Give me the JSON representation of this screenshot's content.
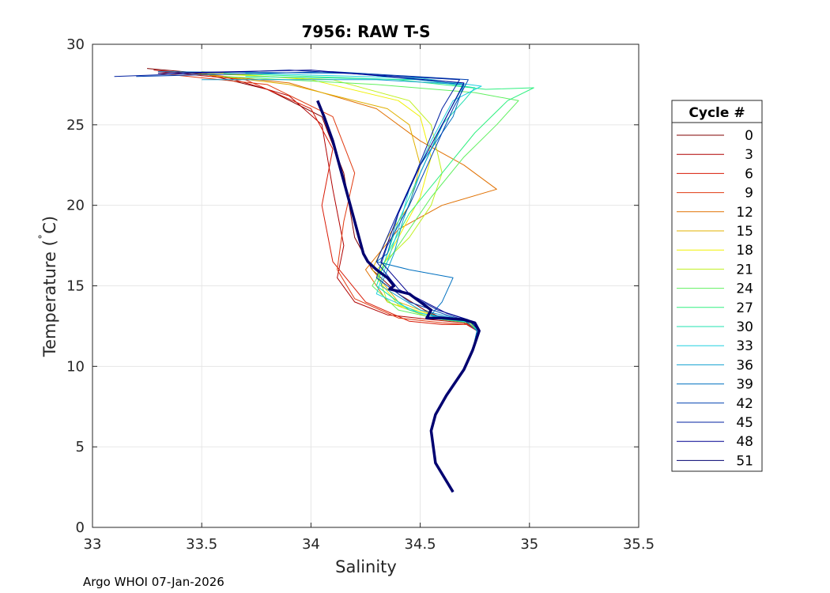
{
  "chart_data": {
    "type": "line",
    "title": "7956: RAW T-S",
    "xlabel": "Salinity",
    "ylabel": "Temperature (°C)",
    "ylabel_main": "Temperature (",
    "ylabel_unit": "°C)",
    "xlim": [
      33,
      35.5
    ],
    "ylim": [
      0,
      30
    ],
    "x_ticks": [
      33,
      33.5,
      34,
      34.5,
      35,
      35.5
    ],
    "x_tick_labels": [
      "33",
      "33.5",
      "34",
      "34.5",
      "35",
      "35.5"
    ],
    "y_ticks": [
      0,
      5,
      10,
      15,
      20,
      25,
      30
    ],
    "y_tick_labels": [
      "0",
      "5",
      "10",
      "15",
      "20",
      "25",
      "30"
    ],
    "grid": true,
    "legend": {
      "title": "Cycle #",
      "placement": "right-outside",
      "entries": [
        "0",
        "3",
        "6",
        "9",
        "12",
        "15",
        "18",
        "21",
        "24",
        "27",
        "30",
        "33",
        "36",
        "39",
        "42",
        "45",
        "48",
        "51"
      ],
      "colors": [
        "#800000",
        "#b00000",
        "#d81a05",
        "#e03a10",
        "#e07000",
        "#e0b000",
        "#f0f000",
        "#c0f020",
        "#60f060",
        "#30f080",
        "#20e0b0",
        "#20d0e0",
        "#10a0d0",
        "#0070c0",
        "#0040b0",
        "#0020a0",
        "#000090",
        "#000070"
      ]
    },
    "series": [
      {
        "name": "0",
        "color": "#800000",
        "x": [
          33.25,
          33.5,
          33.8,
          34.05,
          34.15,
          34.2,
          34.28,
          34.4,
          34.52,
          34.6,
          34.7,
          34.76,
          34.74,
          34.7,
          34.62,
          34.57,
          34.55,
          34.57,
          34.65
        ],
        "y": [
          28.5,
          28.2,
          27.2,
          25.5,
          22.0,
          18.0,
          16.0,
          14.5,
          13.5,
          13.0,
          12.8,
          12.2,
          11.0,
          9.8,
          8.2,
          7.0,
          6.0,
          4.0,
          2.2
        ]
      },
      {
        "name": "3",
        "color": "#b00000",
        "x": [
          33.28,
          33.6,
          33.9,
          34.05,
          34.1,
          34.15,
          34.12,
          34.2,
          34.35,
          34.55,
          34.7,
          34.76,
          34.74,
          34.7,
          34.62,
          34.57,
          34.55,
          34.57,
          34.65
        ],
        "y": [
          28.4,
          28.0,
          26.8,
          25.0,
          21.0,
          17.5,
          15.5,
          14.0,
          13.2,
          12.9,
          12.7,
          12.2,
          11.0,
          9.8,
          8.2,
          7.0,
          6.0,
          4.0,
          2.2
        ]
      },
      {
        "name": "6",
        "color": "#d81a05",
        "x": [
          33.3,
          33.7,
          34.0,
          34.1,
          34.05,
          34.1,
          34.25,
          34.45,
          34.6,
          34.72,
          34.76,
          34.74,
          34.7,
          34.62,
          34.57,
          34.55,
          34.57,
          34.65
        ],
        "y": [
          28.3,
          27.8,
          26.0,
          23.5,
          20.0,
          16.5,
          14.0,
          12.8,
          12.6,
          12.6,
          12.2,
          11.0,
          9.8,
          8.2,
          7.0,
          6.0,
          4.0,
          2.2
        ]
      },
      {
        "name": "9",
        "color": "#e03a10",
        "x": [
          33.3,
          33.8,
          34.1,
          34.2,
          34.15,
          34.12,
          34.2,
          34.4,
          34.6,
          34.72,
          34.76,
          34.74,
          34.7,
          34.62,
          34.57,
          34.55,
          34.57,
          34.65
        ],
        "y": [
          28.2,
          27.5,
          25.5,
          22.0,
          19.0,
          16.0,
          14.2,
          13.0,
          12.7,
          12.6,
          12.2,
          11.0,
          9.8,
          8.2,
          7.0,
          6.0,
          4.0,
          2.2
        ]
      },
      {
        "name": "12",
        "color": "#e07000",
        "x": [
          33.4,
          33.9,
          34.3,
          34.5,
          34.7,
          34.85,
          34.6,
          34.4,
          34.25,
          34.35,
          34.55,
          34.72,
          34.76,
          34.74,
          34.7,
          34.62,
          34.57,
          34.55,
          34.57,
          34.65
        ],
        "y": [
          28.3,
          27.6,
          26.0,
          24.0,
          22.5,
          21.0,
          20.0,
          18.5,
          16.0,
          14.0,
          13.0,
          12.7,
          12.2,
          11.0,
          9.8,
          8.2,
          7.0,
          6.0,
          4.0,
          2.2
        ]
      },
      {
        "name": "15",
        "color": "#e0b000",
        "x": [
          33.4,
          33.9,
          34.35,
          34.45,
          34.5,
          34.45,
          34.35,
          34.28,
          34.4,
          34.6,
          34.73,
          34.76,
          34.74,
          34.7,
          34.62,
          34.57,
          34.55,
          34.57,
          34.65
        ],
        "y": [
          28.3,
          27.5,
          26.0,
          25.0,
          22.5,
          20.0,
          18.0,
          16.0,
          14.0,
          13.0,
          12.7,
          12.2,
          11.0,
          9.8,
          8.2,
          7.0,
          6.0,
          4.0,
          2.2
        ]
      },
      {
        "name": "18",
        "color": "#f0f000",
        "x": [
          33.5,
          34.0,
          34.4,
          34.5,
          34.55,
          34.5,
          34.4,
          34.3,
          34.4,
          34.6,
          34.73,
          34.76,
          34.74,
          34.7,
          34.62,
          34.57,
          34.55,
          34.57,
          34.65
        ],
        "y": [
          28.3,
          27.8,
          26.5,
          25.5,
          23.0,
          20.5,
          18.0,
          15.5,
          13.8,
          13.0,
          12.7,
          12.2,
          11.0,
          9.8,
          8.2,
          7.0,
          6.0,
          4.0,
          2.2
        ]
      },
      {
        "name": "21",
        "color": "#c0f020",
        "x": [
          33.5,
          34.1,
          34.45,
          34.55,
          34.6,
          34.55,
          34.45,
          34.3,
          34.35,
          34.55,
          34.73,
          34.76,
          34.74,
          34.7,
          34.62,
          34.57,
          34.55,
          34.57,
          34.65
        ],
        "y": [
          28.2,
          27.8,
          26.5,
          25.0,
          22.0,
          20.0,
          18.0,
          16.0,
          14.0,
          13.0,
          12.7,
          12.2,
          11.0,
          9.8,
          8.2,
          7.0,
          6.0,
          4.0,
          2.2
        ]
      },
      {
        "name": "24",
        "color": "#60f060",
        "x": [
          33.6,
          34.3,
          34.75,
          34.95,
          34.85,
          34.7,
          34.55,
          34.45,
          34.35,
          34.28,
          34.4,
          34.6,
          34.73,
          34.76,
          34.74,
          34.7,
          34.62,
          34.57,
          34.55,
          34.57,
          34.65
        ],
        "y": [
          28.0,
          27.5,
          27.0,
          26.5,
          25.0,
          23.0,
          20.5,
          18.5,
          16.5,
          15.0,
          13.5,
          12.9,
          12.7,
          12.2,
          11.0,
          9.8,
          8.2,
          7.0,
          6.0,
          4.0,
          2.2
        ]
      },
      {
        "name": "27",
        "color": "#30f080",
        "x": [
          33.6,
          34.4,
          34.8,
          35.02,
          34.9,
          34.75,
          34.6,
          34.45,
          34.35,
          34.3,
          34.45,
          34.62,
          34.74,
          34.76,
          34.74,
          34.7,
          34.62,
          34.57,
          34.55,
          34.57,
          34.65
        ],
        "y": [
          28.2,
          27.8,
          27.2,
          27.3,
          26.5,
          24.5,
          22.0,
          19.5,
          17.0,
          15.0,
          13.5,
          12.9,
          12.7,
          12.2,
          11.0,
          9.8,
          8.2,
          7.0,
          6.0,
          4.0,
          2.2
        ]
      },
      {
        "name": "30",
        "color": "#20e0b0",
        "x": [
          33.7,
          34.5,
          34.75,
          34.7,
          34.6,
          34.5,
          34.4,
          34.35,
          34.3,
          34.45,
          34.62,
          34.74,
          34.76,
          34.74,
          34.7,
          34.62,
          34.57,
          34.55,
          34.57,
          34.65
        ],
        "y": [
          28.0,
          27.8,
          27.3,
          26.5,
          25.0,
          22.0,
          19.0,
          17.0,
          15.0,
          13.5,
          12.9,
          12.7,
          12.2,
          11.0,
          9.8,
          8.2,
          7.0,
          6.0,
          4.0,
          2.2
        ]
      },
      {
        "name": "33",
        "color": "#20d0e0",
        "x": [
          33.7,
          34.5,
          34.78,
          34.65,
          34.55,
          34.45,
          34.4,
          34.35,
          34.3,
          34.5,
          34.65,
          34.75,
          34.76,
          34.74,
          34.7,
          34.62,
          34.57,
          34.55,
          34.57,
          34.65
        ],
        "y": [
          28.2,
          27.9,
          27.4,
          26.5,
          24.0,
          21.0,
          18.5,
          16.5,
          14.5,
          13.3,
          12.9,
          12.7,
          12.2,
          11.0,
          9.8,
          8.2,
          7.0,
          6.0,
          4.0,
          2.2
        ]
      },
      {
        "name": "36",
        "color": "#10a0d0",
        "x": [
          33.5,
          34.3,
          34.7,
          34.62,
          34.5,
          34.42,
          34.38,
          34.32,
          34.5,
          34.66,
          34.75,
          34.76,
          34.74,
          34.7,
          34.62,
          34.57,
          34.55,
          34.57,
          34.65
        ],
        "y": [
          27.8,
          27.8,
          27.5,
          25.5,
          22.0,
          19.0,
          17.0,
          15.0,
          13.5,
          13.0,
          12.7,
          12.2,
          11.0,
          9.8,
          8.2,
          7.0,
          6.0,
          4.0,
          2.2
        ]
      },
      {
        "name": "39",
        "color": "#0070c0",
        "x": [
          33.3,
          34.2,
          34.7,
          34.65,
          34.5,
          34.4,
          34.35,
          34.3,
          34.45,
          34.65,
          34.6,
          34.55,
          34.7,
          34.76,
          34.74,
          34.7,
          34.62,
          34.57,
          34.55,
          34.57,
          34.65
        ],
        "y": [
          28.3,
          28.2,
          27.5,
          25.5,
          22.5,
          19.5,
          17.0,
          16.5,
          16.0,
          15.5,
          14.0,
          13.2,
          12.9,
          12.2,
          11.0,
          9.8,
          8.2,
          7.0,
          6.0,
          4.0,
          2.2
        ]
      },
      {
        "name": "42",
        "color": "#0040b0",
        "x": [
          33.2,
          34.1,
          34.72,
          34.65,
          34.55,
          34.45,
          34.35,
          34.3,
          34.45,
          34.62,
          34.73,
          34.77,
          34.74,
          34.7,
          34.62,
          34.57,
          34.55,
          34.57,
          34.65
        ],
        "y": [
          28.0,
          28.3,
          27.8,
          26.0,
          23.0,
          20.0,
          17.5,
          15.5,
          14.0,
          13.2,
          12.8,
          12.2,
          11.0,
          9.8,
          8.2,
          7.0,
          6.0,
          4.0,
          2.2
        ]
      },
      {
        "name": "45",
        "color": "#0020a0",
        "x": [
          33.1,
          33.9,
          34.68,
          34.6,
          34.48,
          34.38,
          34.3,
          34.4,
          34.58,
          34.72,
          34.77,
          34.74,
          34.7,
          34.62,
          34.57,
          34.55,
          34.57,
          34.65
        ],
        "y": [
          28.0,
          28.4,
          27.8,
          26.0,
          22.0,
          19.0,
          16.5,
          14.8,
          13.5,
          12.9,
          12.2,
          11.0,
          9.8,
          8.2,
          7.0,
          6.0,
          4.0,
          2.2
        ]
      },
      {
        "name": "48",
        "color": "#000090",
        "x": [
          33.3,
          34.0,
          34.7,
          34.62,
          34.5,
          34.4,
          34.32,
          34.45,
          34.62,
          34.74,
          34.77,
          34.74,
          34.7,
          34.62,
          34.57,
          34.55,
          34.57,
          34.65
        ],
        "y": [
          28.2,
          28.4,
          27.6,
          25.5,
          22.5,
          19.5,
          16.5,
          14.5,
          13.3,
          12.8,
          12.2,
          11.0,
          9.8,
          8.2,
          7.0,
          6.0,
          4.0,
          2.2
        ]
      },
      {
        "name": "51",
        "color": "#000070",
        "x": [
          34.03,
          34.06,
          34.1,
          34.14,
          34.18,
          34.22,
          34.24,
          34.26,
          34.3,
          34.35,
          34.38,
          34.36,
          34.45,
          34.5,
          34.55,
          34.53,
          34.6,
          34.7,
          34.75,
          34.77,
          34.74,
          34.7,
          34.62,
          34.57,
          34.55,
          34.57,
          34.65
        ],
        "y": [
          26.5,
          25.5,
          24.0,
          22.0,
          20.0,
          18.0,
          17.0,
          16.5,
          16.0,
          15.5,
          15.0,
          14.8,
          14.5,
          14.0,
          13.5,
          13.0,
          13.0,
          12.9,
          12.7,
          12.2,
          11.0,
          9.8,
          8.2,
          7.0,
          6.0,
          4.0,
          2.2
        ]
      }
    ]
  },
  "footer": {
    "credit": "Argo WHOI 07-Jan-2026"
  }
}
